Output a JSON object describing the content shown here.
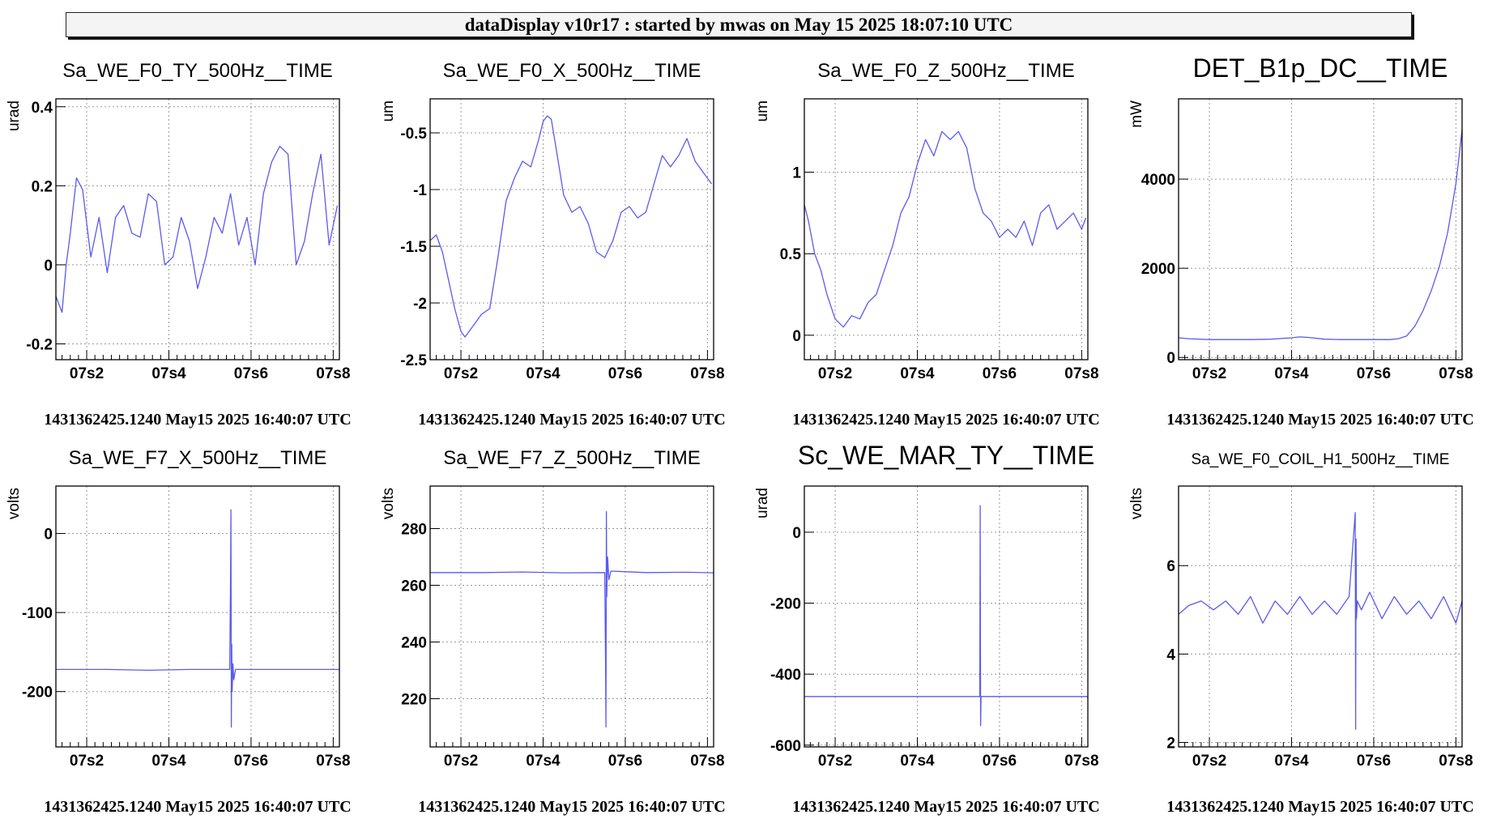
{
  "header": {
    "title": "dataDisplay v10r17 : started by mwas on May 15 2025 18:07:10 UTC"
  },
  "chart_data": [
    {
      "type": "line",
      "title": "Sa_WE_F0_TY_500Hz__TIME",
      "ylabel": "urad",
      "footer": "1431362425.1240 May15 2025 16:40:07 UTC",
      "x_tick_labels": [
        "07s2",
        "07s4",
        "07s6",
        "07s8"
      ],
      "x_ticks": [
        2,
        4,
        6,
        8
      ],
      "xlim": [
        1.25,
        8.15
      ],
      "ylim": [
        -0.24,
        0.42
      ],
      "y_ticks": [
        -0.2,
        0,
        0.2,
        0.4
      ],
      "y_tick_labels": [
        "-0.2",
        "0",
        "0.2",
        "0.4"
      ],
      "grid": true,
      "color": "#5a5af0",
      "x": [
        1.25,
        1.4,
        1.5,
        1.6,
        1.75,
        1.9,
        2.1,
        2.3,
        2.5,
        2.7,
        2.9,
        3.1,
        3.3,
        3.5,
        3.7,
        3.9,
        4.1,
        4.3,
        4.5,
        4.7,
        4.9,
        5.1,
        5.3,
        5.5,
        5.7,
        5.9,
        6.1,
        6.3,
        6.5,
        6.7,
        6.9,
        7.1,
        7.3,
        7.5,
        7.7,
        7.9,
        8.1
      ],
      "y": [
        -0.08,
        -0.12,
        0.0,
        0.08,
        0.22,
        0.19,
        0.02,
        0.12,
        -0.02,
        0.12,
        0.15,
        0.08,
        0.07,
        0.18,
        0.16,
        0.0,
        0.02,
        0.12,
        0.06,
        -0.06,
        0.02,
        0.12,
        0.08,
        0.18,
        0.05,
        0.12,
        0.0,
        0.18,
        0.26,
        0.3,
        0.28,
        0.0,
        0.06,
        0.18,
        0.28,
        0.05,
        0.15
      ]
    },
    {
      "type": "line",
      "title": "Sa_WE_F0_X_500Hz__TIME",
      "ylabel": "um",
      "footer": "1431362425.1240 May15 2025 16:40:07 UTC",
      "x_tick_labels": [
        "07s2",
        "07s4",
        "07s6",
        "07s8"
      ],
      "x_ticks": [
        2,
        4,
        6,
        8
      ],
      "xlim": [
        1.25,
        8.15
      ],
      "ylim": [
        -2.5,
        -0.2
      ],
      "y_ticks": [
        -2.5,
        -2,
        -1.5,
        -1,
        -0.5
      ],
      "y_tick_labels": [
        "-2.5",
        "-2",
        "-1.5",
        "-1",
        "-0.5"
      ],
      "grid": true,
      "color": "#5a5af0",
      "x": [
        1.25,
        1.4,
        1.55,
        1.7,
        1.85,
        2.0,
        2.1,
        2.3,
        2.5,
        2.7,
        2.9,
        3.1,
        3.3,
        3.5,
        3.7,
        3.9,
        4.0,
        4.1,
        4.2,
        4.3,
        4.5,
        4.7,
        4.9,
        5.1,
        5.3,
        5.5,
        5.7,
        5.9,
        6.1,
        6.3,
        6.5,
        6.7,
        6.9,
        7.1,
        7.3,
        7.5,
        7.7,
        7.9,
        8.1
      ],
      "y": [
        -1.45,
        -1.4,
        -1.55,
        -1.8,
        -2.05,
        -2.25,
        -2.3,
        -2.2,
        -2.1,
        -2.05,
        -1.6,
        -1.1,
        -0.9,
        -0.75,
        -0.8,
        -0.55,
        -0.4,
        -0.35,
        -0.38,
        -0.6,
        -1.05,
        -1.2,
        -1.15,
        -1.3,
        -1.55,
        -1.6,
        -1.45,
        -1.2,
        -1.15,
        -1.25,
        -1.2,
        -0.95,
        -0.7,
        -0.8,
        -0.7,
        -0.55,
        -0.75,
        -0.85,
        -0.95
      ]
    },
    {
      "type": "line",
      "title": "Sa_WE_F0_Z_500Hz__TIME",
      "ylabel": "um",
      "footer": "1431362425.1240 May15 2025 16:40:07 UTC",
      "x_tick_labels": [
        "07s2",
        "07s4",
        "07s6",
        "07s8"
      ],
      "x_ticks": [
        2,
        4,
        6,
        8
      ],
      "xlim": [
        1.25,
        8.15
      ],
      "ylim": [
        -0.15,
        1.45
      ],
      "y_ticks": [
        0,
        0.5,
        1
      ],
      "y_tick_labels": [
        "0",
        "0.5",
        "1"
      ],
      "grid": true,
      "color": "#5a5af0",
      "x": [
        1.25,
        1.35,
        1.5,
        1.65,
        1.8,
        2.0,
        2.2,
        2.4,
        2.6,
        2.8,
        3.0,
        3.2,
        3.4,
        3.6,
        3.8,
        4.0,
        4.2,
        4.4,
        4.6,
        4.8,
        5.0,
        5.2,
        5.4,
        5.6,
        5.8,
        6.0,
        6.2,
        6.4,
        6.6,
        6.8,
        7.0,
        7.2,
        7.4,
        7.6,
        7.8,
        8.0,
        8.1
      ],
      "y": [
        0.8,
        0.7,
        0.5,
        0.4,
        0.25,
        0.1,
        0.05,
        0.12,
        0.1,
        0.2,
        0.25,
        0.4,
        0.55,
        0.75,
        0.85,
        1.05,
        1.2,
        1.1,
        1.25,
        1.2,
        1.25,
        1.15,
        0.9,
        0.75,
        0.7,
        0.6,
        0.65,
        0.6,
        0.7,
        0.55,
        0.75,
        0.8,
        0.65,
        0.7,
        0.75,
        0.65,
        0.72
      ]
    },
    {
      "type": "line",
      "title": "DET_B1p_DC__TIME",
      "ylabel": "mW",
      "footer": "1431362425.1240 May15 2025 16:40:07 UTC",
      "x_tick_labels": [
        "07s2",
        "07s4",
        "07s6",
        "07s8"
      ],
      "x_ticks": [
        2,
        4,
        6,
        8
      ],
      "xlim": [
        1.25,
        8.15
      ],
      "ylim": [
        -50,
        5800
      ],
      "y_ticks": [
        0,
        2000,
        4000
      ],
      "y_tick_labels": [
        "0",
        "2000",
        "4000"
      ],
      "grid": true,
      "color": "#5a5af0",
      "x": [
        1.25,
        1.5,
        2.0,
        2.5,
        3.0,
        3.5,
        4.0,
        4.2,
        4.4,
        4.8,
        5.2,
        5.6,
        6.0,
        6.4,
        6.6,
        6.8,
        7.0,
        7.2,
        7.4,
        7.6,
        7.8,
        8.0,
        8.15
      ],
      "y": [
        440,
        420,
        400,
        400,
        400,
        410,
        440,
        460,
        450,
        410,
        400,
        400,
        400,
        400,
        420,
        480,
        700,
        1050,
        1500,
        2050,
        2800,
        3900,
        5100
      ]
    },
    {
      "type": "line",
      "title": "Sa_WE_F7_X_500Hz__TIME",
      "ylabel": "volts",
      "footer": "1431362425.1240 May15 2025 16:40:07 UTC",
      "x_tick_labels": [
        "07s2",
        "07s4",
        "07s6",
        "07s8"
      ],
      "x_ticks": [
        2,
        4,
        6,
        8
      ],
      "xlim": [
        1.25,
        8.15
      ],
      "ylim": [
        -270,
        60
      ],
      "y_ticks": [
        -200,
        -100,
        0
      ],
      "y_tick_labels": [
        "-200",
        "-100",
        "0"
      ],
      "grid": true,
      "color": "#5a5af0",
      "x": [
        1.25,
        2.5,
        3.5,
        4.5,
        5.48,
        5.5,
        5.51,
        5.52,
        5.53,
        5.54,
        5.56,
        5.58,
        5.62,
        6.5,
        7.5,
        8.15
      ],
      "y": [
        -172,
        -172,
        -173,
        -172,
        -172,
        -60,
        30,
        -245,
        -140,
        -200,
        -165,
        -185,
        -172,
        -172,
        -172,
        -172
      ]
    },
    {
      "type": "line",
      "title": "Sa_WE_F7_Z_500Hz__TIME",
      "ylabel": "volts",
      "footer": "1431362425.1240 May15 2025 16:40:07 UTC",
      "x_tick_labels": [
        "07s2",
        "07s4",
        "07s6",
        "07s8"
      ],
      "x_ticks": [
        2,
        4,
        6,
        8
      ],
      "xlim": [
        1.25,
        8.15
      ],
      "ylim": [
        203,
        295
      ],
      "y_ticks": [
        220,
        240,
        260,
        280
      ],
      "y_tick_labels": [
        "220",
        "240",
        "260",
        "280"
      ],
      "grid": true,
      "color": "#5a5af0",
      "x": [
        1.25,
        2.5,
        3.5,
        4.5,
        5.5,
        5.52,
        5.53,
        5.54,
        5.55,
        5.57,
        5.6,
        5.65,
        6.5,
        7.5,
        8.15
      ],
      "y": [
        264.5,
        264.5,
        264.7,
        264.4,
        264.5,
        232,
        210,
        286,
        256,
        270,
        262,
        265,
        264.5,
        264.6,
        264.4
      ]
    },
    {
      "type": "line",
      "title": "Sc_WE_MAR_TY__TIME",
      "ylabel": "urad",
      "footer": "1431362425.1240 May15 2025 16:40:07 UTC",
      "x_tick_labels": [
        "07s2",
        "07s4",
        "07s6",
        "07s8"
      ],
      "x_ticks": [
        2,
        4,
        6,
        8
      ],
      "xlim": [
        1.25,
        8.15
      ],
      "ylim": [
        -605,
        130
      ],
      "y_ticks": [
        -600,
        -400,
        -200,
        0
      ],
      "y_tick_labels": [
        "-600",
        "-400",
        "-200",
        "0"
      ],
      "grid": true,
      "color": "#5a5af0",
      "x": [
        1.25,
        5.52,
        5.53,
        5.54,
        5.55,
        8.15
      ],
      "y": [
        -463,
        -463,
        75,
        -545,
        -463,
        -463
      ]
    },
    {
      "type": "line",
      "title": "Sa_WE_F0_COIL_H1_500Hz__TIME",
      "ylabel": "volts",
      "footer": "1431362425.1240 May15 2025 16:40:07 UTC",
      "x_tick_labels": [
        "07s2",
        "07s4",
        "07s6",
        "07s8"
      ],
      "x_ticks": [
        2,
        4,
        6,
        8
      ],
      "xlim": [
        1.25,
        8.15
      ],
      "ylim": [
        1.9,
        7.8
      ],
      "y_ticks": [
        2,
        4,
        6
      ],
      "y_tick_labels": [
        "2",
        "4",
        "6"
      ],
      "grid": true,
      "color": "#5a5af0",
      "x": [
        1.25,
        1.5,
        1.8,
        2.1,
        2.4,
        2.7,
        3.0,
        3.3,
        3.6,
        3.9,
        4.2,
        4.5,
        4.8,
        5.1,
        5.4,
        5.55,
        5.56,
        5.57,
        5.58,
        5.6,
        5.7,
        5.9,
        6.2,
        6.5,
        6.8,
        7.1,
        7.4,
        7.7,
        8.0,
        8.15
      ],
      "y": [
        4.9,
        5.1,
        5.2,
        5.0,
        5.2,
        4.9,
        5.3,
        4.7,
        5.2,
        4.9,
        5.3,
        4.9,
        5.2,
        4.9,
        5.3,
        7.2,
        2.3,
        6.6,
        4.8,
        5.2,
        5.0,
        5.4,
        4.8,
        5.3,
        4.9,
        5.2,
        4.8,
        5.3,
        4.7,
        5.2
      ]
    }
  ]
}
